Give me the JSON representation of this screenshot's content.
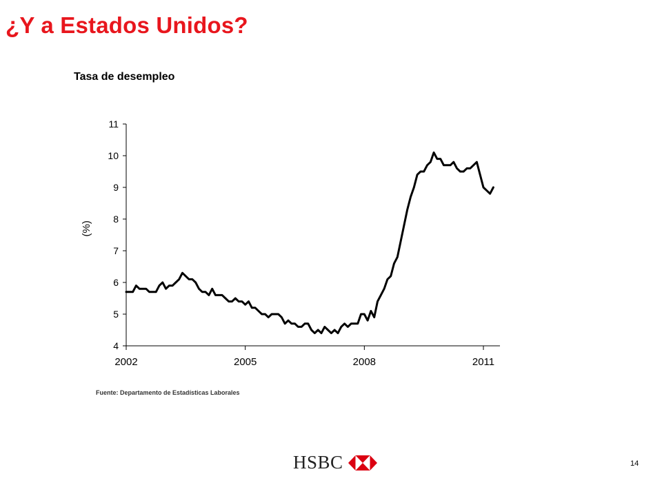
{
  "slide": {
    "title": "¿Y a Estados Unidos?",
    "title_color": "#e8161d",
    "source": "Fuente: Departamento de Estadísticas Laborales",
    "page_number": "14",
    "logo": {
      "text": "HSBC",
      "icon": "hsbc-hexagon-logo-icon",
      "color": "#db0011"
    }
  },
  "chart_data": {
    "type": "line",
    "title": "Tasa de desempleo",
    "ylabel": "(%)",
    "xlabel": "",
    "ylim": [
      4,
      11
    ],
    "yticks": [
      4,
      5,
      6,
      7,
      8,
      9,
      10,
      11
    ],
    "xlim": [
      "2002-01",
      "2011-06"
    ],
    "xticks": [
      {
        "date": "2002-01",
        "label": "2002"
      },
      {
        "date": "2005-01",
        "label": "2005"
      },
      {
        "date": "2008-01",
        "label": "2008"
      },
      {
        "date": "2011-01",
        "label": "2011"
      }
    ],
    "grid": false,
    "line_color": "#000000",
    "series": [
      {
        "x": [
          "2002-01",
          "2002-02",
          "2002-03",
          "2002-04",
          "2002-05",
          "2002-06",
          "2002-07",
          "2002-08",
          "2002-09",
          "2002-10",
          "2002-11",
          "2002-12",
          "2003-01",
          "2003-02",
          "2003-03",
          "2003-04",
          "2003-05",
          "2003-06",
          "2003-07",
          "2003-08",
          "2003-09",
          "2003-10",
          "2003-11",
          "2003-12",
          "2004-01",
          "2004-02",
          "2004-03",
          "2004-04",
          "2004-05",
          "2004-06",
          "2004-07",
          "2004-08",
          "2004-09",
          "2004-10",
          "2004-11",
          "2004-12",
          "2005-01",
          "2005-02",
          "2005-03",
          "2005-04",
          "2005-05",
          "2005-06",
          "2005-07",
          "2005-08",
          "2005-09",
          "2005-10",
          "2005-11",
          "2005-12",
          "2006-01",
          "2006-02",
          "2006-03",
          "2006-04",
          "2006-05",
          "2006-06",
          "2006-07",
          "2006-08",
          "2006-09",
          "2006-10",
          "2006-11",
          "2006-12",
          "2007-01",
          "2007-02",
          "2007-03",
          "2007-04",
          "2007-05",
          "2007-06",
          "2007-07",
          "2007-08",
          "2007-09",
          "2007-10",
          "2007-11",
          "2007-12",
          "2008-01",
          "2008-02",
          "2008-03",
          "2008-04",
          "2008-05",
          "2008-06",
          "2008-07",
          "2008-08",
          "2008-09",
          "2008-10",
          "2008-11",
          "2008-12",
          "2009-01",
          "2009-02",
          "2009-03",
          "2009-04",
          "2009-05",
          "2009-06",
          "2009-07",
          "2009-08",
          "2009-09",
          "2009-10",
          "2009-11",
          "2009-12",
          "2010-01",
          "2010-02",
          "2010-03",
          "2010-04",
          "2010-05",
          "2010-06",
          "2010-07",
          "2010-08",
          "2010-09",
          "2010-10",
          "2010-11",
          "2010-12",
          "2011-01",
          "2011-02",
          "2011-03",
          "2011-04"
        ],
        "values": [
          5.7,
          5.7,
          5.7,
          5.9,
          5.8,
          5.8,
          5.8,
          5.7,
          5.7,
          5.7,
          5.9,
          6.0,
          5.8,
          5.9,
          5.9,
          6.0,
          6.1,
          6.3,
          6.2,
          6.1,
          6.1,
          6.0,
          5.8,
          5.7,
          5.7,
          5.6,
          5.8,
          5.6,
          5.6,
          5.6,
          5.5,
          5.4,
          5.4,
          5.5,
          5.4,
          5.4,
          5.3,
          5.4,
          5.2,
          5.2,
          5.1,
          5.0,
          5.0,
          4.9,
          5.0,
          5.0,
          5.0,
          4.9,
          4.7,
          4.8,
          4.7,
          4.7,
          4.6,
          4.6,
          4.7,
          4.7,
          4.5,
          4.4,
          4.5,
          4.4,
          4.6,
          4.5,
          4.4,
          4.5,
          4.4,
          4.6,
          4.7,
          4.6,
          4.7,
          4.7,
          4.7,
          5.0,
          5.0,
          4.8,
          5.1,
          4.9,
          5.4,
          5.6,
          5.8,
          6.1,
          6.2,
          6.6,
          6.8,
          7.3,
          7.8,
          8.3,
          8.7,
          9.0,
          9.4,
          9.5,
          9.5,
          9.7,
          9.8,
          10.1,
          9.9,
          9.9,
          9.7,
          9.7,
          9.7,
          9.8,
          9.6,
          9.5,
          9.5,
          9.6,
          9.6,
          9.7,
          9.8,
          9.4,
          9.0,
          8.9,
          8.8,
          9.0
        ]
      }
    ]
  }
}
